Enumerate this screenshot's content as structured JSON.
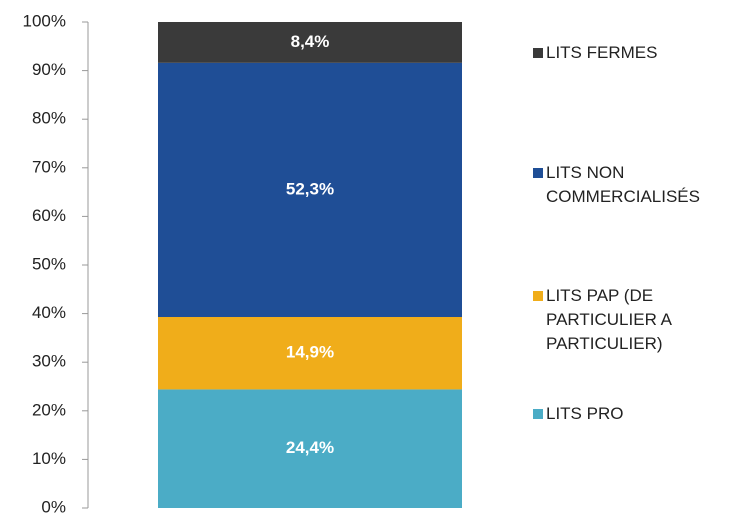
{
  "chart_data": {
    "type": "stacked_bar",
    "categories": [
      null
    ],
    "series": [
      {
        "name": "LITS PRO",
        "color": "#4bacc6",
        "values": [
          24.4
        ],
        "value_labels": [
          "24,4%"
        ]
      },
      {
        "name": "LITS PAP (DE PARTICULIER A PARTICULIER)",
        "color": "#f0ad1a",
        "values": [
          14.9
        ],
        "value_labels": [
          "14,9%"
        ]
      },
      {
        "name": "LITS NON COMMERCIALISÉS",
        "color": "#1f4e96",
        "values": [
          52.3
        ],
        "value_labels": [
          "52,3%"
        ]
      },
      {
        "name": "LITS FERMES",
        "color": "#3a3a3a",
        "values": [
          8.4
        ],
        "value_labels": [
          "8,4%"
        ]
      }
    ],
    "ylim": [
      0,
      100
    ],
    "yticks": [
      {
        "value": 0,
        "label": "0%"
      },
      {
        "value": 10,
        "label": "10%"
      },
      {
        "value": 20,
        "label": "20%"
      },
      {
        "value": 30,
        "label": "30%"
      },
      {
        "value": 40,
        "label": "40%"
      },
      {
        "value": 50,
        "label": "50%"
      },
      {
        "value": 60,
        "label": "60%"
      },
      {
        "value": 70,
        "label": "70%"
      },
      {
        "value": 80,
        "label": "80%"
      },
      {
        "value": 90,
        "label": "90%"
      },
      {
        "value": 100,
        "label": "100%"
      }
    ],
    "legend": "right"
  }
}
